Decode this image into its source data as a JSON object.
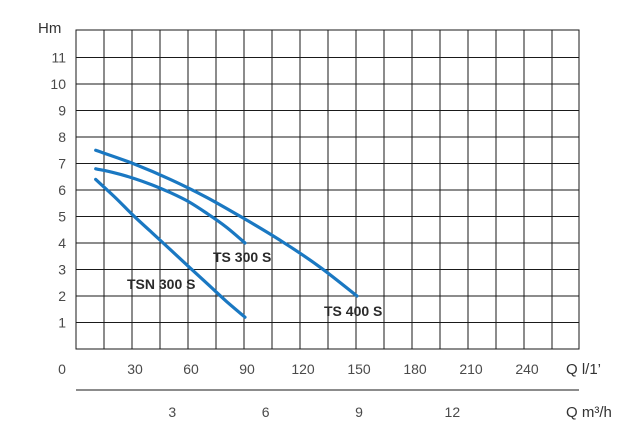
{
  "chart_data": {
    "type": "line",
    "ylabel": "Hm",
    "xlabel_primary": "Q l/1’",
    "xlabel_secondary": "Q m³/h",
    "x_ticks_primary": [
      "0",
      "30",
      "60",
      "90",
      "120",
      "150",
      "180",
      "210",
      "240"
    ],
    "x_ticks_secondary": [
      "3",
      "6",
      "9",
      "12"
    ],
    "y_ticks": [
      "1",
      "2",
      "3",
      "4",
      "5",
      "6",
      "7",
      "8",
      "9",
      "10",
      "11"
    ],
    "xlim": [
      0,
      270
    ],
    "ylim": [
      0,
      12
    ],
    "grid": true,
    "curve_color": "#1a78c2",
    "series": [
      {
        "name": "TSN 300 S",
        "x": [
          10,
          20,
          30,
          40,
          50,
          60,
          70,
          80,
          90
        ],
        "y": [
          6.4,
          5.75,
          5.05,
          4.4,
          3.75,
          3.1,
          2.45,
          1.8,
          1.2
        ]
      },
      {
        "name": "TS 300 S",
        "x": [
          10,
          20,
          30,
          40,
          50,
          60,
          70,
          80,
          90
        ],
        "y": [
          6.8,
          6.65,
          6.45,
          6.2,
          5.9,
          5.55,
          5.1,
          4.6,
          4.0
        ]
      },
      {
        "name": "TS 400 S",
        "x": [
          10,
          30,
          50,
          70,
          90,
          110,
          130,
          150
        ],
        "y": [
          7.5,
          7.0,
          6.4,
          5.7,
          4.9,
          4.05,
          3.1,
          2.0
        ]
      }
    ]
  }
}
